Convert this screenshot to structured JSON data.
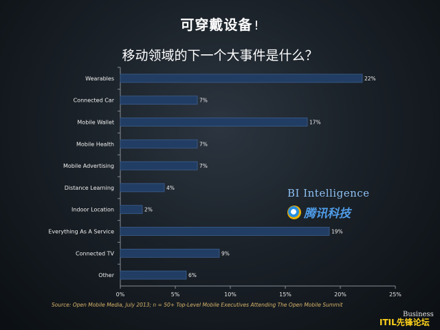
{
  "header": {
    "main_title": "可穿戴设备",
    "exclaim": "!",
    "subtitle": "移动领域的下一个大事件是什么？"
  },
  "chart_data": {
    "type": "bar",
    "orientation": "horizontal",
    "categories": [
      "Wearables",
      "Connected Car",
      "Mobile Wallet",
      "Mobile Health",
      "Mobile Advertising",
      "Distance Learning",
      "Indoor Location",
      "Everything As A Service",
      "Connected TV",
      "Other"
    ],
    "values": [
      22,
      7,
      17,
      7,
      7,
      4,
      2,
      19,
      9,
      6
    ],
    "data_labels": [
      "22%",
      "7%",
      "17%",
      "7%",
      "7%",
      "4%",
      "2%",
      "19%",
      "9%",
      "6%"
    ],
    "x_ticks": [
      "0%",
      "5%",
      "10%",
      "15%",
      "20%",
      "25%"
    ],
    "xlim": [
      0,
      25
    ],
    "grid": false,
    "bar_color": "#213d63",
    "bar_edge_color": "#3d5f8f"
  },
  "source": "Source: Open Mobile Media, July 2013; n = 50+ Top-Level Mobile Executives Attending The Open Mobile Summit",
  "logos": {
    "bi_intelligence": "BI Intelligence",
    "tencent": "腾讯科技",
    "business": "Business"
  },
  "watermark": "ITIL先锋论坛",
  "colors": {
    "source_text": "#d9b46b",
    "bi_text": "#8ec1f3",
    "watermark": "#ffd21a"
  }
}
